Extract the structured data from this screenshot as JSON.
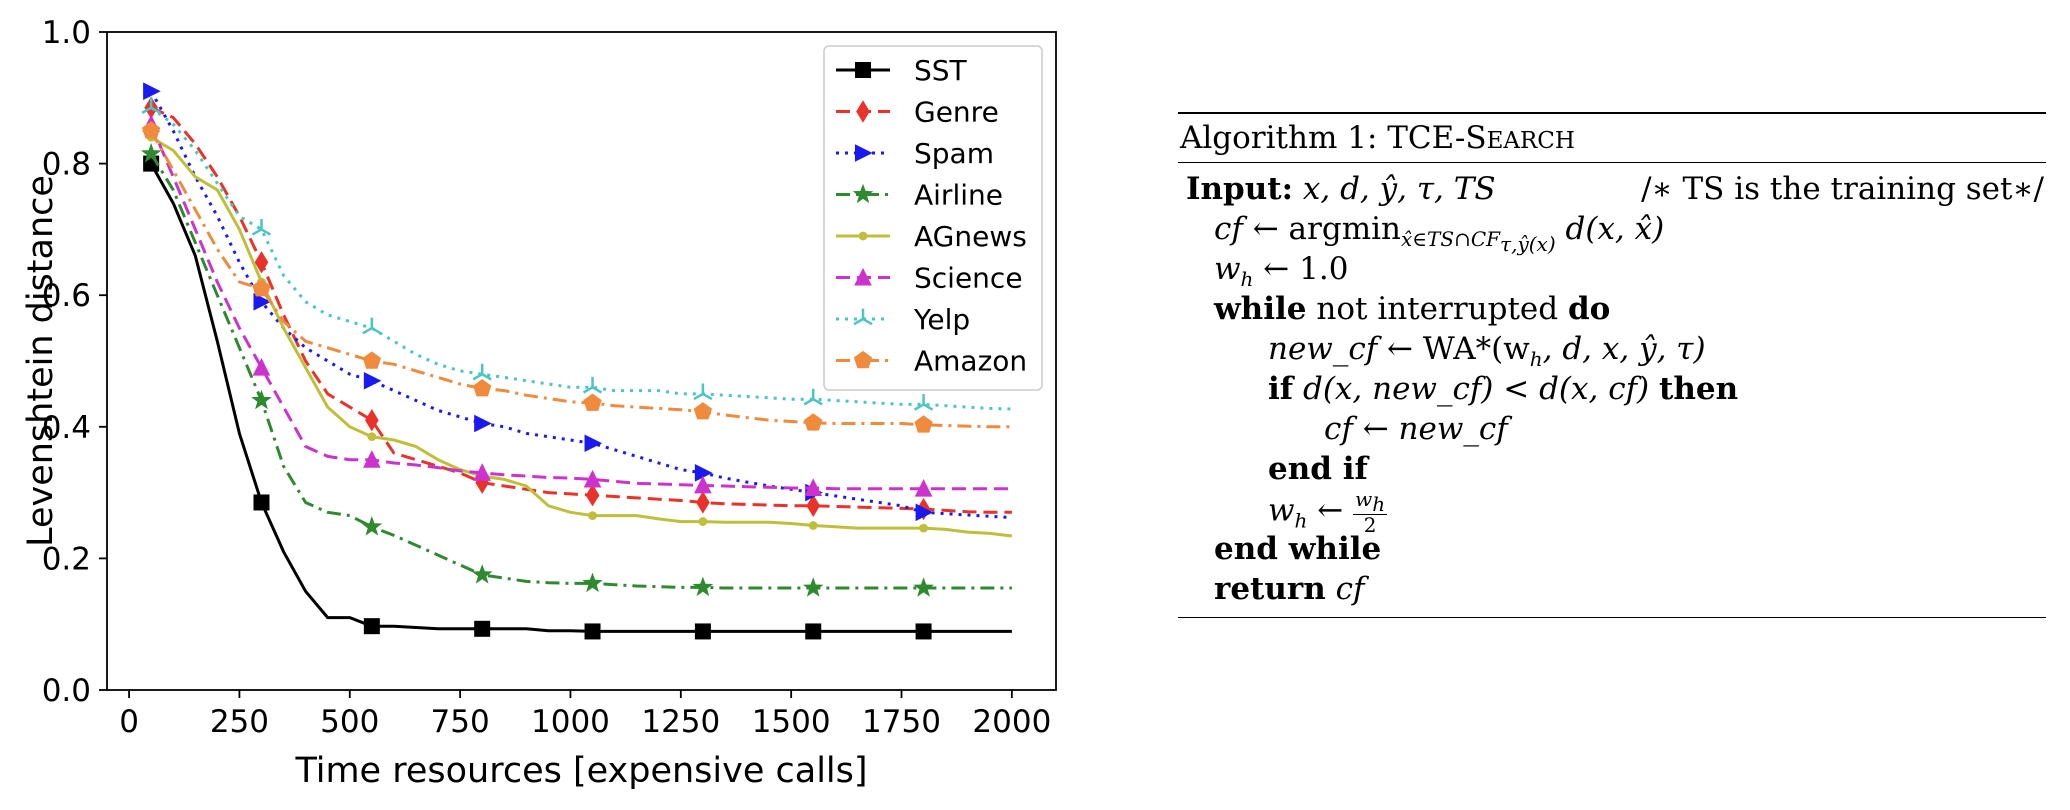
{
  "chart_data": {
    "type": "line",
    "title": "",
    "xlabel": "Time resources [expensive calls]",
    "ylabel": "Levenshtein distance",
    "xlim": [
      -50,
      2100
    ],
    "ylim": [
      0.0,
      1.0
    ],
    "xticks": [
      0,
      250,
      500,
      750,
      1000,
      1250,
      1500,
      1750,
      2000
    ],
    "yticks": [
      0.0,
      0.2,
      0.4,
      0.6,
      0.8,
      1.0
    ],
    "xtick_labels": [
      "0",
      "250",
      "500",
      "750",
      "1000",
      "1250",
      "1500",
      "1750",
      "2000"
    ],
    "ytick_labels": [
      "0.0",
      "0.2",
      "0.4",
      "0.6",
      "0.8",
      "1.0"
    ],
    "grid": false,
    "legend_position": "top-right",
    "series": [
      {
        "name": "SST",
        "color": "#000000",
        "dash": "solid",
        "marker": "square",
        "x": [
          50,
          100,
          150,
          200,
          250,
          300,
          350,
          400,
          450,
          500,
          550,
          600,
          650,
          700,
          750,
          800,
          850,
          900,
          950,
          1000,
          1050,
          1100,
          1150,
          1200,
          1250,
          1300,
          1350,
          1400,
          1450,
          1500,
          1550,
          1600,
          1650,
          1700,
          1750,
          1800,
          1850,
          1900,
          1950,
          2000
        ],
        "y": [
          0.8,
          0.74,
          0.66,
          0.53,
          0.39,
          0.285,
          0.21,
          0.15,
          0.11,
          0.11,
          0.097,
          0.097,
          0.095,
          0.093,
          0.093,
          0.093,
          0.093,
          0.093,
          0.09,
          0.09,
          0.089,
          0.089,
          0.089,
          0.089,
          0.089,
          0.089,
          0.089,
          0.089,
          0.089,
          0.089,
          0.089,
          0.089,
          0.089,
          0.089,
          0.089,
          0.089,
          0.089,
          0.089,
          0.089,
          0.089
        ],
        "marker_x": [
          50,
          300,
          550,
          800,
          1050,
          1300,
          1550,
          1800
        ],
        "marker_y": [
          0.8,
          0.285,
          0.097,
          0.093,
          0.089,
          0.089,
          0.089,
          0.089
        ]
      },
      {
        "name": "Genre",
        "color": "#e8322a",
        "dash": "dashed",
        "marker": "diamond",
        "x": [
          50,
          100,
          150,
          200,
          250,
          300,
          350,
          400,
          450,
          500,
          550,
          600,
          650,
          700,
          750,
          800,
          850,
          900,
          950,
          1000,
          1050,
          1100,
          1150,
          1200,
          1250,
          1300,
          1350,
          1400,
          1450,
          1500,
          1550,
          1600,
          1650,
          1700,
          1750,
          1800,
          1850,
          1900,
          1950,
          2000
        ],
        "y": [
          0.885,
          0.87,
          0.83,
          0.78,
          0.72,
          0.65,
          0.57,
          0.5,
          0.45,
          0.43,
          0.41,
          0.36,
          0.35,
          0.34,
          0.33,
          0.315,
          0.31,
          0.305,
          0.3,
          0.298,
          0.296,
          0.294,
          0.292,
          0.29,
          0.288,
          0.285,
          0.283,
          0.282,
          0.281,
          0.28,
          0.28,
          0.279,
          0.278,
          0.277,
          0.276,
          0.275,
          0.273,
          0.271,
          0.27,
          0.27
        ],
        "marker_x": [
          50,
          300,
          550,
          800,
          1050,
          1300,
          1550,
          1800
        ],
        "marker_y": [
          0.885,
          0.65,
          0.41,
          0.315,
          0.296,
          0.285,
          0.28,
          0.275
        ]
      },
      {
        "name": "Spam",
        "color": "#1a1aef",
        "dash": "dotted",
        "marker": "triangle-right",
        "x": [
          50,
          100,
          150,
          200,
          250,
          300,
          350,
          400,
          450,
          500,
          550,
          600,
          650,
          700,
          750,
          800,
          850,
          900,
          950,
          1000,
          1050,
          1100,
          1150,
          1200,
          1250,
          1300,
          1350,
          1400,
          1450,
          1500,
          1550,
          1600,
          1650,
          1700,
          1750,
          1800,
          1850,
          1900,
          1950,
          2000
        ],
        "y": [
          0.91,
          0.85,
          0.78,
          0.72,
          0.65,
          0.59,
          0.55,
          0.52,
          0.5,
          0.48,
          0.47,
          0.455,
          0.44,
          0.425,
          0.415,
          0.405,
          0.4,
          0.39,
          0.385,
          0.38,
          0.375,
          0.365,
          0.355,
          0.345,
          0.335,
          0.33,
          0.322,
          0.316,
          0.31,
          0.305,
          0.3,
          0.295,
          0.29,
          0.285,
          0.28,
          0.27,
          0.268,
          0.266,
          0.264,
          0.262
        ],
        "marker_x": [
          50,
          300,
          550,
          800,
          1050,
          1300,
          1550,
          1800
        ],
        "marker_y": [
          0.91,
          0.59,
          0.47,
          0.405,
          0.375,
          0.33,
          0.3,
          0.27
        ]
      },
      {
        "name": "Airline",
        "color": "#2f8a2f",
        "dash": "dashdot",
        "marker": "star",
        "x": [
          50,
          100,
          150,
          200,
          250,
          300,
          350,
          400,
          450,
          500,
          550,
          600,
          650,
          700,
          750,
          800,
          850,
          900,
          950,
          1000,
          1050,
          1100,
          1150,
          1200,
          1250,
          1300,
          1350,
          1400,
          1450,
          1500,
          1550,
          1600,
          1650,
          1700,
          1750,
          1800,
          1850,
          1900,
          1950,
          2000
        ],
        "y": [
          0.815,
          0.76,
          0.68,
          0.6,
          0.52,
          0.44,
          0.34,
          0.285,
          0.27,
          0.265,
          0.248,
          0.235,
          0.22,
          0.205,
          0.19,
          0.175,
          0.17,
          0.165,
          0.163,
          0.162,
          0.162,
          0.16,
          0.158,
          0.157,
          0.156,
          0.156,
          0.155,
          0.155,
          0.155,
          0.155,
          0.155,
          0.155,
          0.155,
          0.155,
          0.155,
          0.155,
          0.155,
          0.155,
          0.155,
          0.155
        ],
        "marker_x": [
          50,
          300,
          550,
          800,
          1050,
          1300,
          1550,
          1800
        ],
        "marker_y": [
          0.815,
          0.44,
          0.248,
          0.175,
          0.162,
          0.156,
          0.155,
          0.155
        ]
      },
      {
        "name": "AGnews",
        "color": "#bfbf3c",
        "dash": "solid",
        "marker": "circle",
        "x": [
          50,
          100,
          150,
          200,
          250,
          300,
          350,
          400,
          450,
          500,
          550,
          600,
          650,
          700,
          750,
          800,
          850,
          900,
          950,
          1000,
          1050,
          1100,
          1150,
          1200,
          1250,
          1300,
          1350,
          1400,
          1450,
          1500,
          1550,
          1600,
          1650,
          1700,
          1750,
          1800,
          1850,
          1900,
          1950,
          2000
        ],
        "y": [
          0.84,
          0.82,
          0.78,
          0.76,
          0.7,
          0.62,
          0.55,
          0.49,
          0.43,
          0.4,
          0.385,
          0.38,
          0.37,
          0.35,
          0.335,
          0.325,
          0.32,
          0.31,
          0.28,
          0.27,
          0.265,
          0.265,
          0.265,
          0.26,
          0.256,
          0.256,
          0.255,
          0.255,
          0.255,
          0.253,
          0.25,
          0.248,
          0.246,
          0.246,
          0.246,
          0.246,
          0.244,
          0.24,
          0.238,
          0.234
        ],
        "marker_x": [
          50,
          300,
          550,
          800,
          1050,
          1300,
          1550,
          1800
        ],
        "marker_y": [
          0.84,
          0.62,
          0.385,
          0.325,
          0.265,
          0.256,
          0.25,
          0.246
        ]
      },
      {
        "name": "Science",
        "color": "#cc33cc",
        "dash": "dashed",
        "marker": "triangle-up",
        "x": [
          50,
          100,
          150,
          200,
          250,
          300,
          350,
          400,
          450,
          500,
          550,
          600,
          650,
          700,
          750,
          800,
          850,
          900,
          950,
          1000,
          1050,
          1100,
          1150,
          1200,
          1250,
          1300,
          1350,
          1400,
          1450,
          1500,
          1550,
          1600,
          1650,
          1700,
          1750,
          1800,
          1850,
          1900,
          1950,
          2000
        ],
        "y": [
          0.86,
          0.78,
          0.7,
          0.62,
          0.55,
          0.49,
          0.43,
          0.37,
          0.355,
          0.35,
          0.35,
          0.345,
          0.342,
          0.338,
          0.333,
          0.33,
          0.327,
          0.325,
          0.323,
          0.322,
          0.32,
          0.317,
          0.314,
          0.313,
          0.312,
          0.311,
          0.31,
          0.309,
          0.308,
          0.307,
          0.307,
          0.306,
          0.306,
          0.306,
          0.306,
          0.306,
          0.306,
          0.306,
          0.306,
          0.306
        ],
        "marker_x": [
          50,
          300,
          550,
          800,
          1050,
          1300,
          1550,
          1800
        ],
        "marker_y": [
          0.86,
          0.49,
          0.35,
          0.33,
          0.32,
          0.311,
          0.307,
          0.306
        ]
      },
      {
        "name": "Yelp",
        "color": "#4cc4c4",
        "dash": "dotted",
        "marker": "tri",
        "x": [
          50,
          100,
          150,
          200,
          250,
          300,
          350,
          400,
          450,
          500,
          550,
          600,
          650,
          700,
          750,
          800,
          850,
          900,
          950,
          1000,
          1050,
          1100,
          1150,
          1200,
          1250,
          1300,
          1350,
          1400,
          1450,
          1500,
          1550,
          1600,
          1650,
          1700,
          1750,
          1800,
          1850,
          1900,
          1950,
          2000
        ],
        "y": [
          0.885,
          0.86,
          0.82,
          0.77,
          0.72,
          0.7,
          0.63,
          0.59,
          0.57,
          0.56,
          0.55,
          0.53,
          0.51,
          0.495,
          0.485,
          0.48,
          0.475,
          0.47,
          0.465,
          0.46,
          0.46,
          0.455,
          0.455,
          0.455,
          0.45,
          0.45,
          0.448,
          0.446,
          0.444,
          0.442,
          0.442,
          0.44,
          0.438,
          0.436,
          0.434,
          0.434,
          0.432,
          0.43,
          0.428,
          0.427
        ],
        "marker_x": [
          50,
          300,
          550,
          800,
          1050,
          1300,
          1550,
          1800
        ],
        "marker_y": [
          0.885,
          0.7,
          0.55,
          0.48,
          0.46,
          0.45,
          0.442,
          0.434
        ]
      },
      {
        "name": "Amazon",
        "color": "#f08a3c",
        "dash": "dashdot",
        "marker": "pentagon",
        "x": [
          50,
          100,
          150,
          200,
          250,
          300,
          350,
          400,
          450,
          500,
          550,
          600,
          650,
          700,
          750,
          800,
          850,
          900,
          950,
          1000,
          1050,
          1100,
          1150,
          1200,
          1250,
          1300,
          1350,
          1400,
          1450,
          1500,
          1550,
          1600,
          1650,
          1700,
          1750,
          1800,
          1850,
          1900,
          1950,
          2000
        ],
        "y": [
          0.85,
          0.79,
          0.73,
          0.67,
          0.62,
          0.61,
          0.56,
          0.53,
          0.52,
          0.51,
          0.5,
          0.495,
          0.485,
          0.475,
          0.465,
          0.458,
          0.455,
          0.448,
          0.443,
          0.438,
          0.436,
          0.432,
          0.43,
          0.428,
          0.426,
          0.423,
          0.418,
          0.414,
          0.41,
          0.408,
          0.406,
          0.405,
          0.405,
          0.405,
          0.405,
          0.403,
          0.402,
          0.401,
          0.4,
          0.4
        ],
        "marker_x": [
          50,
          300,
          550,
          800,
          1050,
          1300,
          1550,
          1800
        ],
        "marker_y": [
          0.85,
          0.61,
          0.5,
          0.458,
          0.436,
          0.423,
          0.406,
          0.403
        ]
      }
    ]
  },
  "algorithm": {
    "title_prefix": "Algorithm 1: TCE-",
    "title_cap": "S",
    "title_small": "EARCH",
    "input_kw": "Input:",
    "input_vars": "x, d, ŷ, τ, TS",
    "input_comment": "/∗ TS is the training set∗/",
    "cf_var": "cf",
    "arrow": "←",
    "argmin": "argmin",
    "argmin_sub": "x̂∈TS∩CF",
    "argmin_subsub": "τ,ŷ(x)",
    "argmin_tail": "d(x, x̂)",
    "wh_var": "w",
    "h": "h",
    "init_value": "1.0",
    "while_kw": "while",
    "while_cond": "not interrupted",
    "do_kw": "do",
    "newcf_var": "new_cf",
    "wa_call": "WA*(w",
    "wa_args": ", d, x, ŷ, τ)",
    "if_kw": "if",
    "if_cond": "d(x, new_cf) < d(x, cf)",
    "then_kw": "then",
    "endif_kw": "end if",
    "frac_num": "w",
    "frac_den": "2",
    "endwhile_kw": "end while",
    "return_kw": "return"
  }
}
